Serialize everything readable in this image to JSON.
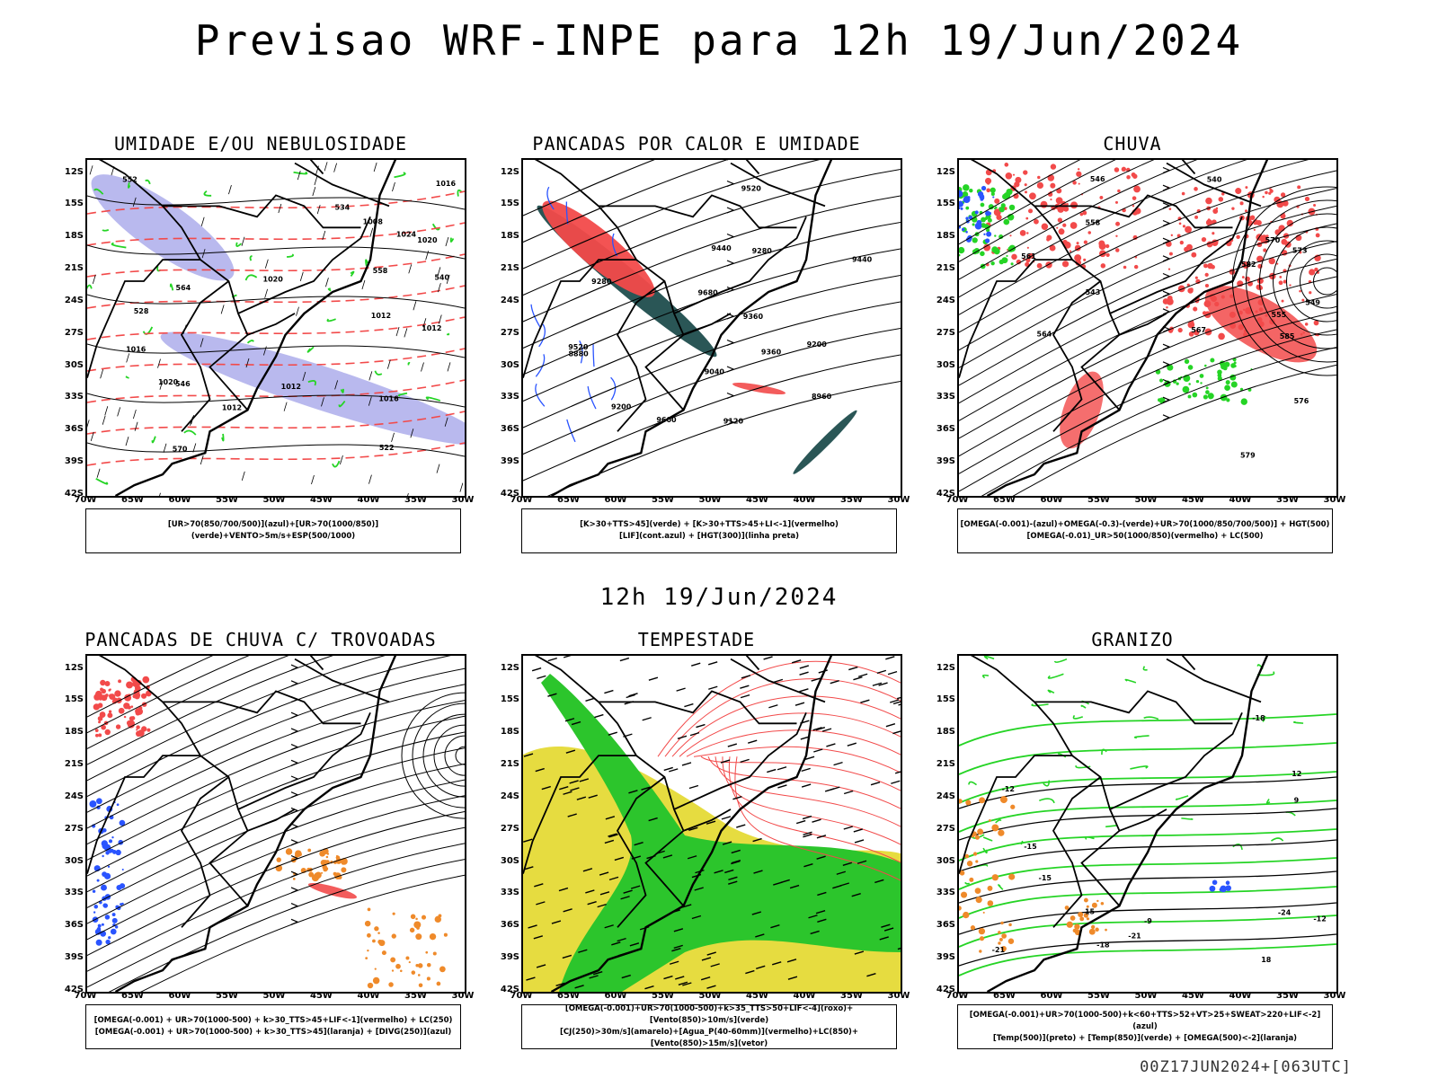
{
  "title": "Previsao WRF-INPE  para 12h 19/Jun/2024",
  "subtitle": "12h 19/Jun/2024",
  "footer": "00Z17JUN2024+[063UTC]",
  "axes": {
    "lat_labels": [
      "12S",
      "15S",
      "18S",
      "21S",
      "24S",
      "27S",
      "30S",
      "33S",
      "36S",
      "39S",
      "42S"
    ],
    "lon_labels": [
      "70W",
      "65W",
      "60W",
      "55W",
      "50W",
      "45W",
      "40W",
      "35W",
      "30W"
    ]
  },
  "colors": {
    "rain_red": "#f24a4a",
    "green": "#25d425",
    "blue": "#2a54ff",
    "lavender": "#a8a8ea",
    "teal": "#1f4d4d",
    "yellow": "#e6dc40",
    "orange": "#ef8a2a"
  },
  "panels": [
    {
      "id": "umidade",
      "title": "UMIDADE E/OU NEBULOSIDADE",
      "legend": [
        "[UR>70(850/700/500)](azul)+[UR>70(1000/850)](verde)+VENTO>5m/s+ESP(500/1000)"
      ],
      "contour_labels": [
        "1016",
        "1012",
        "1016",
        "1020",
        "1020",
        "1024",
        "1020",
        "1012",
        "1016",
        "1012",
        "1008",
        "1012",
        "570",
        "564",
        "558",
        "552",
        "546",
        "540",
        "534",
        "528",
        "522"
      ]
    },
    {
      "id": "pancadas_calor",
      "title": "PANCADAS POR CALOR E UMIDADE",
      "legend": [
        "[K>30+TTS>45](verde) + [K>30+TTS>45+LI<-1](vermelho)",
        "[LIF](cont.azul) + [HGT(300)](linha preta)"
      ],
      "contour_labels": [
        "9680",
        "9600",
        "9520",
        "9520",
        "9440",
        "9360",
        "9280",
        "9200",
        "9120",
        "9040",
        "8960",
        "8880",
        "9440",
        "9360",
        "9280",
        "9200"
      ]
    },
    {
      "id": "chuva",
      "title": "CHUVA",
      "legend": [
        "[OMEGA(-0.001)-(azul)+OMEGA(-0.3)-(verde)+UR>70(1000/850/700/500)] + HGT(500)",
        "[OMEGA(-0.01)_UR>50(1000/850)(vermelho) + LC(500)"
      ],
      "contour_labels": [
        "585",
        "582",
        "579",
        "576",
        "573",
        "570",
        "567",
        "564",
        "561",
        "558",
        "555",
        "549",
        "546",
        "543",
        "540"
      ]
    },
    {
      "id": "trovoadas",
      "title": "PANCADAS DE CHUVA C/ TROVOADAS",
      "legend": [
        "[OMEGA(-0.001) + UR>70(1000-500) + k>30_TTS>45+LIF<-1](vermelho) + LC(250)",
        "[OMEGA(-0.001) + UR>70(1000-500) + k>30_TTS>45](laranja) + [DIVG(250)](azul)"
      ],
      "contour_labels": []
    },
    {
      "id": "tempestade",
      "title": "TEMPESTADE",
      "legend": [
        "[OMEGA(-0.001)+UR>70(1000-500)+k>35_TTS>50+LIF<-4](roxo)+[Vento(850)>10m/s](verde)",
        "[CJ(250)>30m/s](amarelo)+[Agua_P(40-60mm)](vermelho)+LC(850)+[Vento(850)>15m/s](vetor)"
      ],
      "contour_labels": []
    },
    {
      "id": "granizo",
      "title": "GRANIZO",
      "legend": [
        "[OMEGA(-0.001)+UR>70(1000-500)+k<60+TTS>52+VT>25+SWEAT>220+LIF<-2](azul)",
        "[Temp(500)](preto) + [Temp(850)](verde) + [OMEGA(500)<-2](laranja)"
      ],
      "contour_labels": [
        "-12",
        "-15",
        "-18",
        "-21",
        "-24",
        "-12",
        "-15",
        "-18",
        "-21",
        "-9",
        "12",
        "15",
        "18",
        "9"
      ]
    }
  ]
}
